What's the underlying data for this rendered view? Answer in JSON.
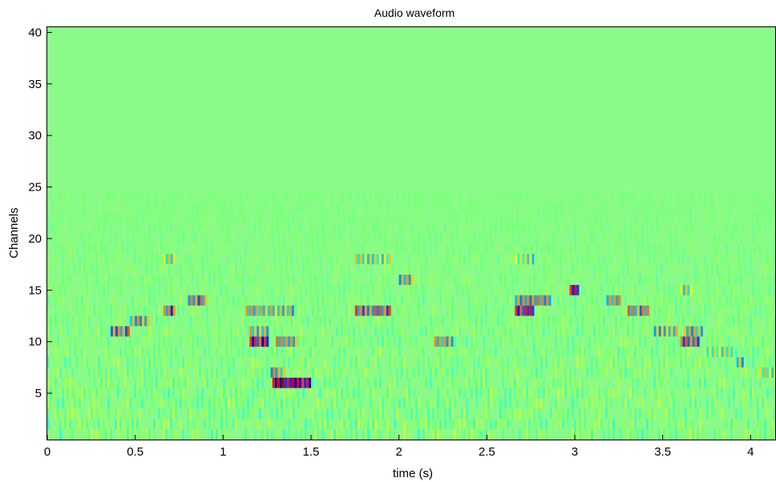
{
  "chart_data": {
    "type": "heatmap",
    "title": "Audio waveform",
    "xlabel": "time (s)",
    "ylabel": "Channels",
    "xlim": [
      0,
      4.14
    ],
    "ylim": [
      0.5,
      40.5
    ],
    "x_ticks": [
      "0",
      "0.5",
      "1",
      "1.5",
      "2",
      "2.5",
      "3",
      "3.5",
      "4"
    ],
    "y_ticks": [
      "5",
      "10",
      "15",
      "20",
      "25",
      "30",
      "35",
      "40"
    ],
    "channels": 40,
    "colormap": "jet",
    "background_color": "#8cfa88",
    "grid": false,
    "events": [
      {
        "t0": 0.36,
        "t1": 0.46,
        "channel": 11,
        "amp": -0.6
      },
      {
        "t0": 0.47,
        "t1": 0.57,
        "channel": 12,
        "amp": -0.5
      },
      {
        "t0": 0.66,
        "t1": 0.72,
        "channel": 13,
        "amp": 0.7
      },
      {
        "t0": 0.66,
        "t1": 0.72,
        "channel": 18,
        "amp": 0.4
      },
      {
        "t0": 0.8,
        "t1": 0.9,
        "channel": 14,
        "amp": -0.6
      },
      {
        "t0": 1.15,
        "t1": 1.25,
        "channel": 10,
        "amp": 0.9
      },
      {
        "t0": 1.15,
        "t1": 1.25,
        "channel": 11,
        "amp": 0.5
      },
      {
        "t0": 1.13,
        "t1": 1.4,
        "channel": 13,
        "amp": 0.5
      },
      {
        "t0": 1.3,
        "t1": 1.42,
        "channel": 10,
        "amp": 0.6
      },
      {
        "t0": 1.27,
        "t1": 1.34,
        "channel": 7,
        "amp": -0.5
      },
      {
        "t0": 1.28,
        "t1": 1.35,
        "channel": 6,
        "amp": 1.0
      },
      {
        "t0": 1.35,
        "t1": 1.49,
        "channel": 6,
        "amp": -0.9
      },
      {
        "t0": 1.75,
        "t1": 1.95,
        "channel": 13,
        "amp": 0.7
      },
      {
        "t0": 1.75,
        "t1": 1.95,
        "channel": 18,
        "amp": 0.4
      },
      {
        "t0": 2.0,
        "t1": 2.07,
        "channel": 16,
        "amp": -0.5
      },
      {
        "t0": 2.2,
        "t1": 2.3,
        "channel": 10,
        "amp": 0.5
      },
      {
        "t0": 2.66,
        "t1": 2.76,
        "channel": 13,
        "amp": 0.8
      },
      {
        "t0": 2.66,
        "t1": 2.86,
        "channel": 14,
        "amp": -0.6
      },
      {
        "t0": 2.66,
        "t1": 2.76,
        "channel": 18,
        "amp": 0.4
      },
      {
        "t0": 2.97,
        "t1": 3.02,
        "channel": 15,
        "amp": 0.8
      },
      {
        "t0": 3.18,
        "t1": 3.25,
        "channel": 14,
        "amp": -0.5
      },
      {
        "t0": 3.3,
        "t1": 3.42,
        "channel": 13,
        "amp": 0.6
      },
      {
        "t0": 3.45,
        "t1": 3.58,
        "channel": 11,
        "amp": -0.5
      },
      {
        "t0": 3.6,
        "t1": 3.7,
        "channel": 10,
        "amp": 0.7
      },
      {
        "t0": 3.62,
        "t1": 3.72,
        "channel": 11,
        "amp": 0.5
      },
      {
        "t0": 3.6,
        "t1": 3.66,
        "channel": 15,
        "amp": 0.4
      },
      {
        "t0": 3.75,
        "t1": 3.9,
        "channel": 9,
        "amp": -0.4
      },
      {
        "t0": 3.92,
        "t1": 3.96,
        "channel": 8,
        "amp": -0.5
      },
      {
        "t0": 4.05,
        "t1": 4.14,
        "channel": 7,
        "amp": 0.4
      }
    ]
  }
}
